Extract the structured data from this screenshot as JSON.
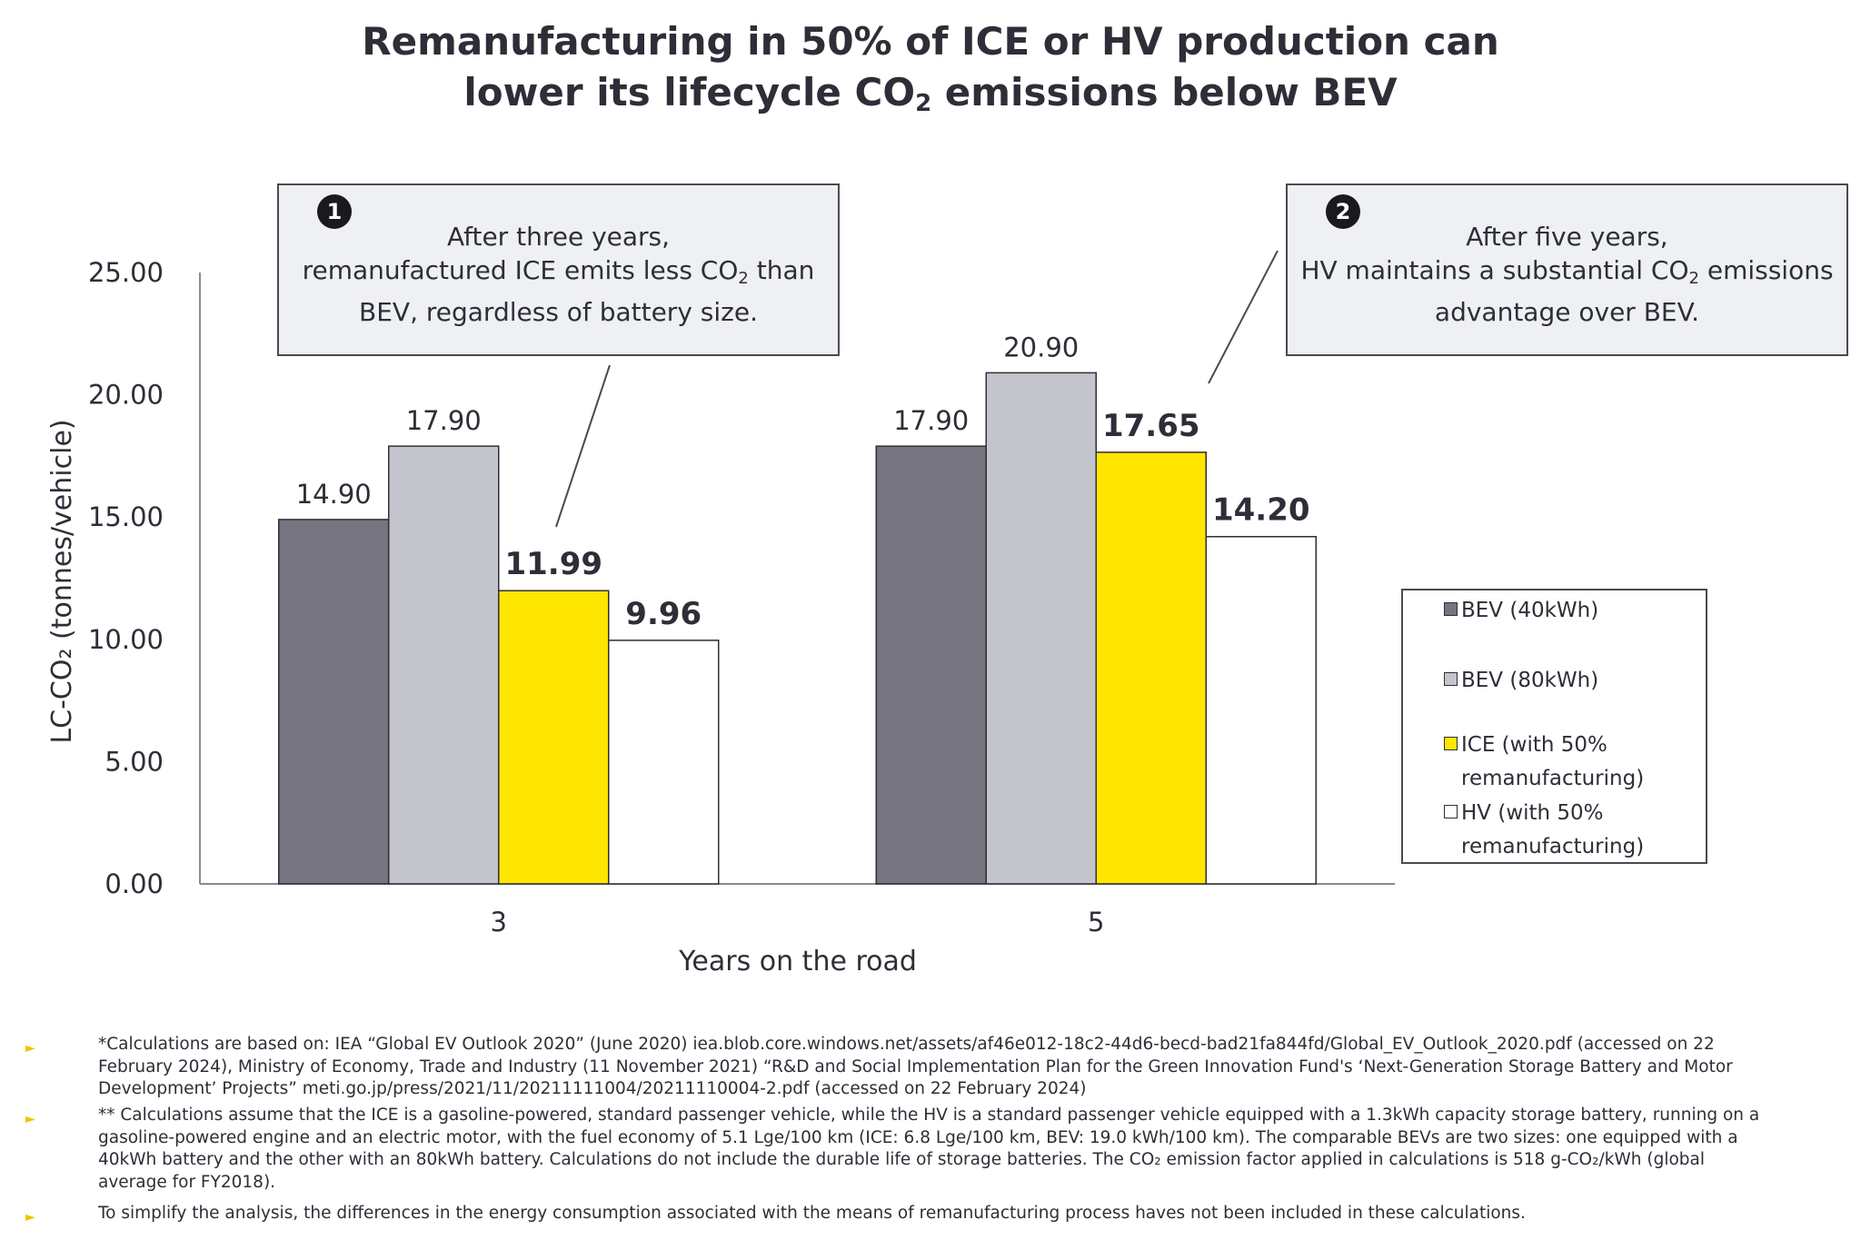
{
  "title": {
    "line1": "Remanufacturing in 50% of ICE or HV production can",
    "line2_pre": "lower its lifecycle CO",
    "line2_sub": "2",
    "line2_post": " emissions below BEV"
  },
  "callouts": [
    {
      "number": "1",
      "line1": "After three years,",
      "line2_pre": "remanufactured ICE emits less CO",
      "line2_sub": "2",
      "line2_post": " than",
      "line3": "BEV, regardless of battery size."
    },
    {
      "number": "2",
      "line1": "After five years,",
      "line2_pre": "HV maintains a substantial CO",
      "line2_sub": "2",
      "line2_post": " emissions",
      "line3": "advantage over BEV."
    }
  ],
  "chart_data": {
    "type": "bar",
    "title": "Remanufacturing in 50% of ICE or HV production can lower its lifecycle CO2 emissions below BEV",
    "xlabel": "Years on the road",
    "ylabel": "LC-CO₂ (tonnes/vehicle)",
    "categories": [
      "3",
      "5"
    ],
    "ylim": [
      0,
      25
    ],
    "yticks": [
      "0.00",
      "5.00",
      "10.00",
      "15.00",
      "20.00",
      "25.00"
    ],
    "series": [
      {
        "name": "BEV (40kWh)",
        "color": "#75747f",
        "values": [
          14.9,
          17.9
        ],
        "labels": [
          "14.90",
          "17.90"
        ],
        "bold_labels": false
      },
      {
        "name": "BEV (80kWh)",
        "color": "#c4c4cc",
        "values": [
          17.9,
          20.9
        ],
        "labels": [
          "17.90",
          "20.90"
        ],
        "bold_labels": false
      },
      {
        "name": "ICE (with 50% remanufacturing)",
        "color": "#ffe600",
        "values": [
          11.99,
          17.65
        ],
        "labels": [
          "11.99",
          "17.65"
        ],
        "bold_labels": true
      },
      {
        "name": "HV (with 50% remanufacturing)",
        "color": "#ffffff",
        "values": [
          9.96,
          14.2
        ],
        "labels": [
          "9.96",
          "14.20"
        ],
        "bold_labels": true
      }
    ],
    "legend_position": "right",
    "grid": false
  },
  "legend": [
    {
      "line1": "BEV (40kWh)",
      "line2": ""
    },
    {
      "line1": "BEV (80kWh)",
      "line2": ""
    },
    {
      "line1": "ICE (with 50%",
      "line2": "remanufacturing)"
    },
    {
      "line1": "HV (with 50%",
      "line2": "remanufacturing)"
    }
  ],
  "notes": [
    "*Calculations are based on: IEA “Global EV Outlook 2020” (June 2020) iea.blob.core.windows.net/assets/af46e012-18c2-44d6-becd-bad21fa844fd/Global_EV_Outlook_2020.pdf (accessed on 22 February 2024), Ministry of Economy, Trade and Industry (11 November 2021) “R&D and Social Implementation Plan for the Green Innovation Fund's ‘Next-Generation Storage Battery and Motor Development’ Projects” meti.go.jp/press/2021/11/20211111004/20211110004-2.pdf (accessed on 22 February 2024)",
    "** Calculations assume that the ICE is a gasoline-powered, standard passenger vehicle, while the HV is a standard passenger vehicle equipped with a 1.3kWh capacity storage battery, running on a gasoline-powered engine and an electric motor, with the fuel economy of 5.1 Lge/100 km (ICE: 6.8 Lge/100 km, BEV: 19.0 kWh/100 km). The comparable BEVs are two sizes: one equipped with a 40kWh battery and the other with an 80kWh battery. Calculations do not include the durable life of storage batteries. The CO₂ emission factor applied in calculations is 518 g-CO₂/kWh (global average for FY2018).",
    "To simplify the analysis, the differences in the energy consumption associated with the means of remanufacturing process haves not been included in these calculations."
  ],
  "bullet_glyph": "►"
}
